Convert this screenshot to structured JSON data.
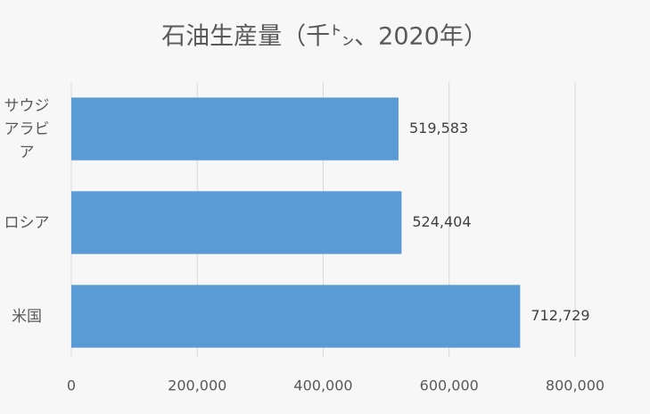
{
  "chart_data": {
    "type": "hbar",
    "title": "石油生産量（千㌧、2020年）",
    "categories": [
      "サウジアラビア",
      "ロシア",
      "米国"
    ],
    "values": [
      519583,
      524404,
      712729
    ],
    "value_labels": [
      "519,583",
      "524,404",
      "712,729"
    ],
    "color": "#5b9bd5",
    "xlim": [
      0,
      800000
    ],
    "xticks": [
      0,
      {
        "value": 200000,
        "label": "200,000"
      },
      {
        "value": 400000,
        "label": "400,000"
      },
      {
        "value": 600000,
        "label": "600,000"
      },
      {
        "value": 800000,
        "label": "800,000"
      }
    ],
    "grid": true
  }
}
